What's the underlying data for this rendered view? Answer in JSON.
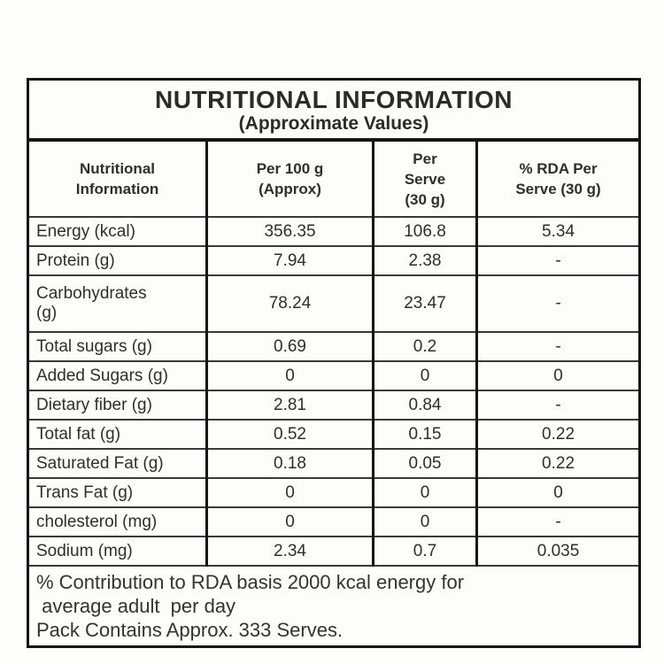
{
  "table": {
    "title": "NUTRITIONAL INFORMATION",
    "subtitle": "(Approximate Values)",
    "headers": [
      "Nutritional\nInformation",
      "Per 100 g\n(Approx)",
      "Per\nServe\n(30 g)",
      "% RDA Per\nServe (30 g)"
    ],
    "rows": [
      {
        "label": "Energy (kcal)",
        "per_100g": "356.35",
        "per_serve": "106.8",
        "rda_per_serve": "5.34"
      },
      {
        "label": "Protein (g)",
        "per_100g": "7.94",
        "per_serve": "2.38",
        "rda_per_serve": "-"
      },
      {
        "label": "Carbohydrates\n(g)",
        "per_100g": "78.24",
        "per_serve": "23.47",
        "rda_per_serve": "-"
      },
      {
        "label": "Total sugars (g)",
        "per_100g": "0.69",
        "per_serve": "0.2",
        "rda_per_serve": "-"
      },
      {
        "label": "Added Sugars (g)",
        "per_100g": "0",
        "per_serve": "0",
        "rda_per_serve": "0"
      },
      {
        "label": "Dietary fiber (g)",
        "per_100g": "2.81",
        "per_serve": "0.84",
        "rda_per_serve": "-"
      },
      {
        "label": "Total fat (g)",
        "per_100g": "0.52",
        "per_serve": "0.15",
        "rda_per_serve": "0.22"
      },
      {
        "label": "Saturated Fat (g)",
        "per_100g": "0.18",
        "per_serve": "0.05",
        "rda_per_serve": "0.22"
      },
      {
        "label": "Trans Fat (g)",
        "per_100g": "0",
        "per_serve": "0",
        "rda_per_serve": "0"
      },
      {
        "label": "cholesterol (mg)",
        "per_100g": "0",
        "per_serve": "0",
        "rda_per_serve": "-"
      },
      {
        "label": "Sodium (mg)",
        "per_100g": "2.34",
        "per_serve": "0.7",
        "rda_per_serve": "0.035"
      }
    ],
    "footnote_lines": [
      "% Contribution to RDA basis 2000 kcal energy for",
      " average adult  per day",
      "Pack Contains Approx. 333 Serves."
    ],
    "colors": {
      "border_heavy": "#161616",
      "border_light": "#3a3a3a",
      "text": "#2e2e2e",
      "background": "#fdfdfb"
    }
  }
}
